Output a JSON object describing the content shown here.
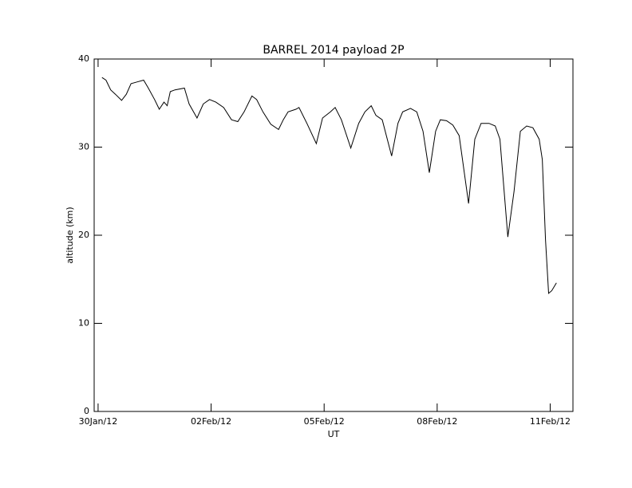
{
  "chart_data": {
    "type": "line",
    "title": "BARREL 2014 payload 2P",
    "xlabel": "UT",
    "ylabel": "altitude (km)",
    "x": [
      "2014-01-30T14:30",
      "2014-01-30T17:00",
      "2014-01-30T20:00",
      "2014-01-30T23:00",
      "2014-01-31T03:00",
      "2014-01-31T06:00",
      "2014-01-31T09:00",
      "2014-01-31T13:00",
      "2014-01-31T17:00",
      "2014-01-31T20:00",
      "2014-02-01T00:00",
      "2014-02-01T03:00",
      "2014-02-01T06:00",
      "2014-02-01T08:00",
      "2014-02-01T10:00",
      "2014-02-01T13:00",
      "2014-02-01T19:00",
      "2014-02-01T22:00",
      "2014-02-02T03:00",
      "2014-02-02T07:00",
      "2014-02-02T11:00",
      "2014-02-02T15:00",
      "2014-02-02T20:00",
      "2014-02-03T01:00",
      "2014-02-03T05:00",
      "2014-02-03T09:00",
      "2014-02-03T14:00",
      "2014-02-03T17:00",
      "2014-02-03T21:00",
      "2014-02-04T02:00",
      "2014-02-04T07:00",
      "2014-02-04T10:00",
      "2014-02-04T13:00",
      "2014-02-04T18:00",
      "2014-02-04T20:00",
      "2014-02-05T01:00",
      "2014-02-05T07:00",
      "2014-02-05T11:00",
      "2014-02-05T16:00",
      "2014-02-05T19:00",
      "2014-02-05T23:00",
      "2014-02-06T05:00",
      "2014-02-06T10:00",
      "2014-02-06T14:00",
      "2014-02-06T18:00",
      "2014-02-06T21:00",
      "2014-02-07T01:00",
      "2014-02-07T07:00",
      "2014-02-07T11:00",
      "2014-02-07T14:00",
      "2014-02-07T19:00",
      "2014-02-07T23:00",
      "2014-02-08T03:00",
      "2014-02-08T07:00",
      "2014-02-08T11:00",
      "2014-02-08T14:00",
      "2014-02-08T18:00",
      "2014-02-08T22:00",
      "2014-02-09T02:00",
      "2014-02-09T08:00",
      "2014-02-09T12:00",
      "2014-02-09T16:00",
      "2014-02-09T21:00",
      "2014-02-10T01:00",
      "2014-02-10T04:00",
      "2014-02-10T09:00",
      "2014-02-10T13:00",
      "2014-02-10T17:00",
      "2014-02-10T21:00",
      "2014-02-11T01:00",
      "2014-02-11T05:00",
      "2014-02-11T07:00",
      "2014-02-11T09:00",
      "2014-02-11T11:00",
      "2014-02-11T13:00",
      "2014-02-11T16:00"
    ],
    "values": [
      37.9,
      37.6,
      36.5,
      36.0,
      35.3,
      36.0,
      37.2,
      37.4,
      37.6,
      36.7,
      35.4,
      34.3,
      35.1,
      34.7,
      36.3,
      36.5,
      36.7,
      34.9,
      33.3,
      34.9,
      35.4,
      35.1,
      34.5,
      33.1,
      32.9,
      34.0,
      35.8,
      35.4,
      34.0,
      32.6,
      32.0,
      33.1,
      34.0,
      34.3,
      34.5,
      32.7,
      30.4,
      33.3,
      34.0,
      34.5,
      33.1,
      29.9,
      32.7,
      34.0,
      34.7,
      33.6,
      33.1,
      29.0,
      32.7,
      34.0,
      34.4,
      34.0,
      31.8,
      27.1,
      31.8,
      33.1,
      33.0,
      32.5,
      31.3,
      23.6,
      30.9,
      32.7,
      32.7,
      32.4,
      30.9,
      19.8,
      25.0,
      31.8,
      32.4,
      32.2,
      30.9,
      28.6,
      19.5,
      13.4,
      13.7,
      14.6
    ],
    "color": "#000000",
    "xlim": [
      "2014-01-30T09:30",
      "2014-02-12T02:30"
    ],
    "xticks": [
      {
        "value": "2014-01-30T12:00",
        "label": "30Jan/12"
      },
      {
        "value": "2014-02-02T12:00",
        "label": "02Feb/12"
      },
      {
        "value": "2014-02-05T12:00",
        "label": "05Feb/12"
      },
      {
        "value": "2014-02-08T12:00",
        "label": "08Feb/12"
      },
      {
        "value": "2014-02-11T12:00",
        "label": "11Feb/12"
      }
    ],
    "ylim": [
      0,
      40
    ],
    "yticks": [
      0,
      10,
      20,
      30,
      40
    ]
  }
}
